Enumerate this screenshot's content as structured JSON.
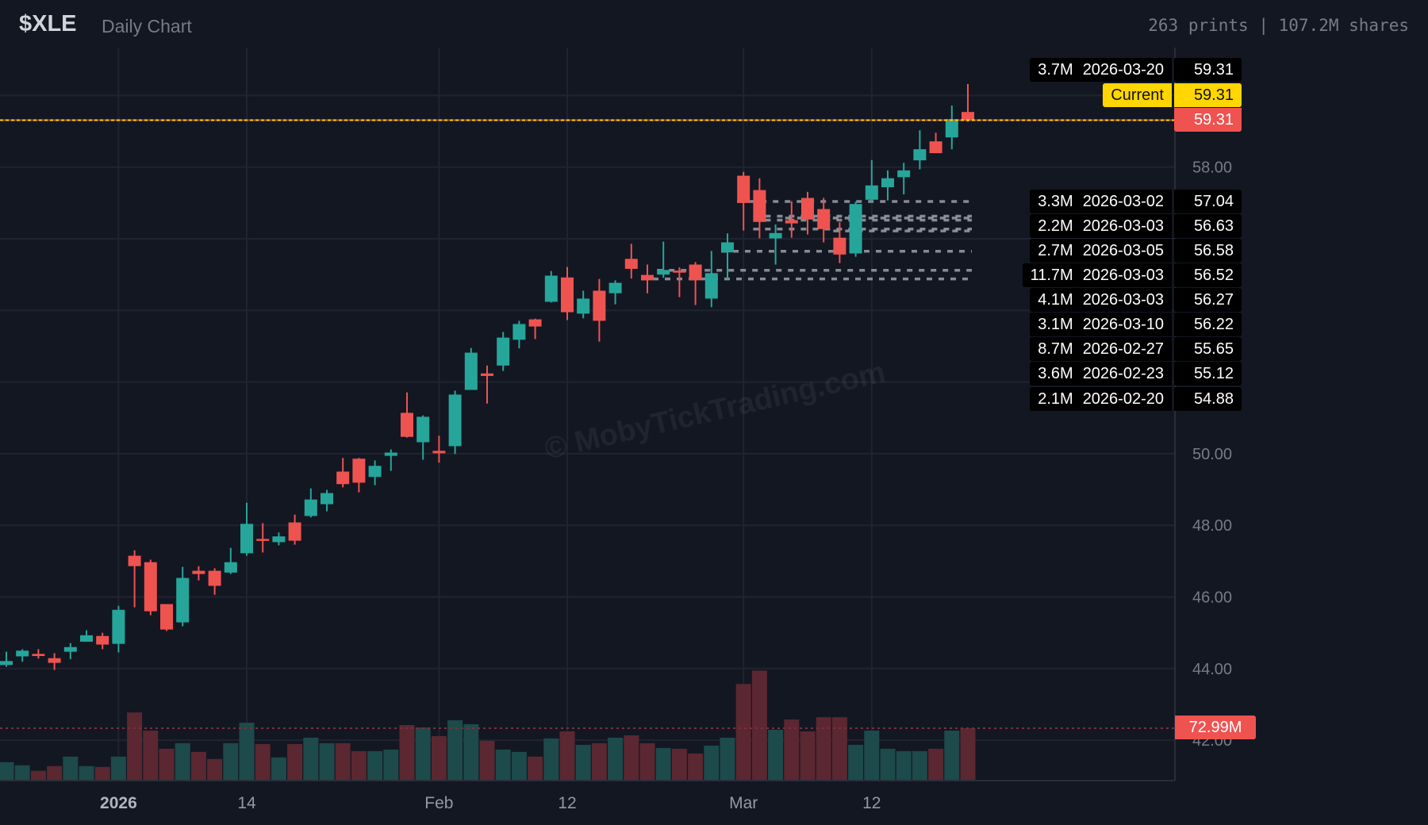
{
  "header": {
    "symbol": "$XLE",
    "subtitle": "Daily Chart",
    "stats": "263 prints | 107.2M shares"
  },
  "watermark": "© MobyTickTrading.com",
  "colors": {
    "up": "#26a69a",
    "down": "#ef5350",
    "up_volume": "#1d4a4b",
    "down_volume": "#5b2731",
    "current": "#ffd600",
    "level_line": "#a3a7b0",
    "background": "#131722"
  },
  "levels": [
    {
      "volume": "3.7M",
      "date": "2026-03-20",
      "price": "59.31"
    },
    {
      "volume": "3.3M",
      "date": "2026-03-02",
      "price": "57.04"
    },
    {
      "volume": "2.2M",
      "date": "2026-03-03",
      "price": "56.63"
    },
    {
      "volume": "2.7M",
      "date": "2026-03-05",
      "price": "56.58"
    },
    {
      "volume": "11.7M",
      "date": "2026-03-03",
      "price": "56.52"
    },
    {
      "volume": "4.1M",
      "date": "2026-03-03",
      "price": "56.27"
    },
    {
      "volume": "3.1M",
      "date": "2026-03-10",
      "price": "56.22"
    },
    {
      "volume": "8.7M",
      "date": "2026-02-27",
      "price": "55.65"
    },
    {
      "volume": "3.6M",
      "date": "2026-02-23",
      "price": "55.12"
    },
    {
      "volume": "2.1M",
      "date": "2026-02-20",
      "price": "54.88"
    }
  ],
  "current": {
    "label": "Current",
    "price": "59.31"
  },
  "last_price": "59.31",
  "volume_reference": "72.99M",
  "chart_data": {
    "type": "candlestick",
    "title": "",
    "y_ticks": [
      "58.00",
      "50.00",
      "48.00",
      "46.00",
      "44.00",
      "42.00"
    ],
    "x_ticks": [
      {
        "label": "2026",
        "date": "2026-01-02",
        "bold": true
      },
      {
        "label": "14",
        "date": "2026-01-14"
      },
      {
        "label": "Feb",
        "date": "2026-02-02"
      },
      {
        "label": "12",
        "date": "2026-02-12"
      },
      {
        "label": "Mar",
        "date": "2026-03-02"
      },
      {
        "label": "12",
        "date": "2026-03-12"
      }
    ],
    "ylim": [
      41.2,
      61.0
    ],
    "grid": true,
    "dates": [
      "2025-12-22",
      "2025-12-23",
      "2025-12-24",
      "2025-12-26",
      "2025-12-29",
      "2025-12-30",
      "2025-12-31",
      "2026-01-02",
      "2026-01-05",
      "2026-01-06",
      "2026-01-07",
      "2026-01-08",
      "2026-01-09",
      "2026-01-12",
      "2026-01-13",
      "2026-01-14",
      "2026-01-15",
      "2026-01-16",
      "2026-01-20",
      "2026-01-21",
      "2026-01-22",
      "2026-01-23",
      "2026-01-26",
      "2026-01-27",
      "2026-01-28",
      "2026-01-29",
      "2026-01-30",
      "2026-02-02",
      "2026-02-03",
      "2026-02-04",
      "2026-02-05",
      "2026-02-06",
      "2026-02-09",
      "2026-02-10",
      "2026-02-11",
      "2026-02-12",
      "2026-02-13",
      "2026-02-17",
      "2026-02-18",
      "2026-02-19",
      "2026-02-20",
      "2026-02-23",
      "2026-02-24",
      "2026-02-25",
      "2026-02-26",
      "2026-02-27",
      "2026-03-02",
      "2026-03-03",
      "2026-03-04",
      "2026-03-05",
      "2026-03-06",
      "2026-03-09",
      "2026-03-10",
      "2026-03-11",
      "2026-03-12",
      "2026-03-13",
      "2026-03-16",
      "2026-03-17",
      "2026-03-18",
      "2026-03-19",
      "2026-03-20"
    ],
    "ohlc": [
      [
        44.1,
        44.47,
        44.05,
        44.21
      ],
      [
        44.34,
        44.54,
        44.19,
        44.5
      ],
      [
        44.41,
        44.54,
        44.28,
        44.35
      ],
      [
        44.29,
        44.43,
        43.96,
        44.16
      ],
      [
        44.47,
        44.71,
        44.26,
        44.6
      ],
      [
        44.75,
        45.07,
        44.75,
        44.93
      ],
      [
        44.91,
        45.0,
        44.54,
        44.67
      ],
      [
        44.69,
        45.75,
        44.45,
        45.64
      ],
      [
        47.15,
        47.3,
        45.71,
        46.86
      ],
      [
        46.97,
        47.04,
        45.49,
        45.6
      ],
      [
        45.8,
        45.8,
        45.05,
        45.09
      ],
      [
        45.29,
        46.84,
        45.18,
        46.53
      ],
      [
        46.73,
        46.86,
        46.46,
        46.64
      ],
      [
        46.73,
        46.8,
        46.06,
        46.31
      ],
      [
        46.68,
        47.37,
        46.64,
        46.97
      ],
      [
        47.22,
        48.63,
        47.15,
        48.04
      ],
      [
        47.62,
        48.06,
        47.24,
        47.57
      ],
      [
        47.53,
        47.8,
        47.44,
        47.69
      ],
      [
        48.08,
        48.3,
        47.46,
        47.57
      ],
      [
        48.26,
        49.03,
        48.22,
        48.72
      ],
      [
        48.59,
        48.99,
        48.39,
        48.9
      ],
      [
        49.5,
        49.88,
        49.06,
        49.15
      ],
      [
        49.86,
        49.88,
        48.92,
        49.19
      ],
      [
        49.35,
        49.81,
        49.12,
        49.66
      ],
      [
        49.94,
        50.12,
        49.52,
        50.03
      ],
      [
        51.14,
        51.71,
        50.45,
        50.47
      ],
      [
        50.32,
        51.07,
        49.83,
        51.03
      ],
      [
        50.08,
        50.5,
        49.75,
        50.01
      ],
      [
        50.21,
        51.76,
        49.99,
        51.65
      ],
      [
        51.78,
        52.95,
        51.78,
        52.82
      ],
      [
        52.24,
        52.46,
        51.4,
        52.17
      ],
      [
        52.46,
        53.4,
        52.31,
        53.24
      ],
      [
        53.18,
        53.71,
        52.94,
        53.62
      ],
      [
        53.75,
        53.77,
        53.2,
        53.55
      ],
      [
        54.24,
        55.1,
        54.22,
        54.97
      ],
      [
        54.92,
        55.21,
        53.73,
        53.95
      ],
      [
        53.91,
        54.55,
        53.78,
        54.33
      ],
      [
        54.55,
        54.88,
        53.13,
        53.71
      ],
      [
        54.48,
        54.84,
        54.17,
        54.77
      ],
      [
        55.44,
        55.86,
        54.89,
        55.16
      ],
      [
        54.99,
        55.28,
        54.48,
        54.84
      ],
      [
        55.0,
        55.92,
        54.91,
        55.13
      ],
      [
        55.11,
        55.2,
        54.37,
        55.06
      ],
      [
        55.28,
        55.35,
        54.15,
        54.84
      ],
      [
        54.33,
        55.66,
        54.09,
        55.04
      ],
      [
        55.62,
        56.15,
        54.88,
        55.9
      ],
      [
        57.76,
        57.87,
        56.23,
        57.0
      ],
      [
        57.36,
        57.69,
        56.01,
        56.47
      ],
      [
        56.01,
        56.4,
        55.28,
        56.16
      ],
      [
        56.52,
        57.05,
        56.03,
        56.43
      ],
      [
        57.14,
        57.31,
        56.12,
        56.54
      ],
      [
        56.83,
        57.14,
        55.9,
        56.27
      ],
      [
        56.03,
        56.46,
        55.32,
        55.56
      ],
      [
        55.59,
        57.03,
        55.5,
        56.97
      ],
      [
        57.09,
        58.2,
        57.03,
        57.49
      ],
      [
        57.44,
        57.91,
        57.07,
        57.69
      ],
      [
        57.72,
        58.12,
        57.24,
        57.91
      ],
      [
        58.19,
        59.03,
        57.94,
        58.5
      ],
      [
        58.72,
        58.96,
        58.39,
        58.39
      ],
      [
        58.83,
        59.72,
        58.5,
        59.34
      ],
      [
        59.54,
        60.32,
        59.27,
        59.31
      ]
    ],
    "volume_m": [
      24.9,
      20.5,
      12.7,
      19.4,
      32.8,
      19.4,
      18.2,
      32.8,
      95.3,
      69.6,
      43.9,
      51.8,
      39.5,
      29.4,
      51.8,
      80.8,
      50.6,
      31.7,
      50.6,
      59.6,
      51.8,
      51.8,
      40.6,
      40.6,
      42.8,
      77.5,
      74.1,
      61.8,
      84.2,
      78.6,
      55.1,
      42.8,
      39.5,
      32.8,
      58.5,
      68.5,
      49.5,
      51.8,
      59.6,
      62.9,
      51.8,
      45.1,
      43.9,
      37.2,
      48.4,
      59.6,
      135.6,
      154.5,
      70.8,
      85.3,
      68.5,
      88.6,
      88.6,
      49.5,
      69.6,
      43.9,
      40.6,
      40.6,
      43.9,
      69.6,
      73.0
    ]
  }
}
